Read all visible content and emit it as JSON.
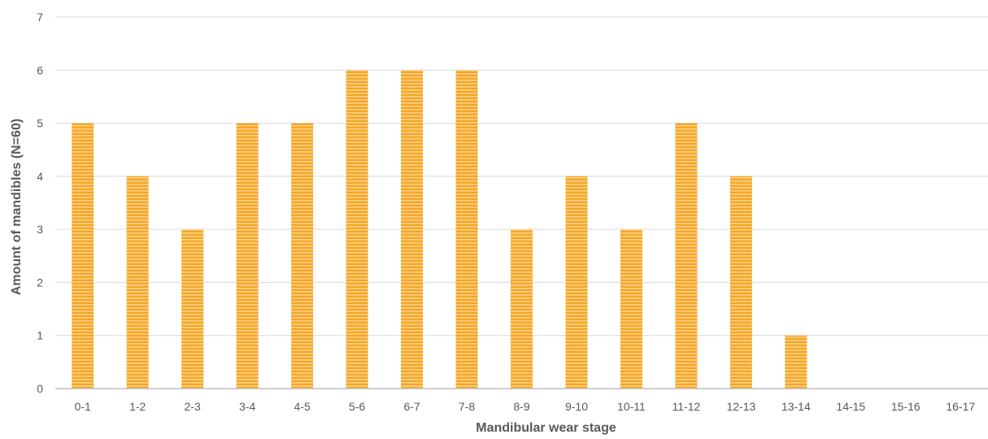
{
  "chart_data": {
    "type": "bar",
    "title": "",
    "xlabel": "Mandibular wear stage",
    "ylabel": "Amount of mandibles (N=60)",
    "categories": [
      "0-1",
      "1-2",
      "2-3",
      "3-4",
      "4-5",
      "5-6",
      "6-7",
      "7-8",
      "8-9",
      "9-10",
      "10-11",
      "11-12",
      "12-13",
      "13-14",
      "14-15",
      "15-16",
      "16-17"
    ],
    "values": [
      5,
      4,
      3,
      5,
      5,
      6,
      6,
      6,
      3,
      4,
      3,
      5,
      4,
      1,
      0,
      0,
      0
    ],
    "ylim": [
      0,
      7
    ],
    "yticks": [
      0,
      1,
      2,
      3,
      4,
      5,
      6,
      7
    ],
    "grid": true,
    "legend": "none",
    "colors": {
      "bar": "#f5a623",
      "bar_stripe": "#fbd08a",
      "grid": "#d9d9d9",
      "axis": "#bfbfbf",
      "text": "#595959"
    }
  }
}
